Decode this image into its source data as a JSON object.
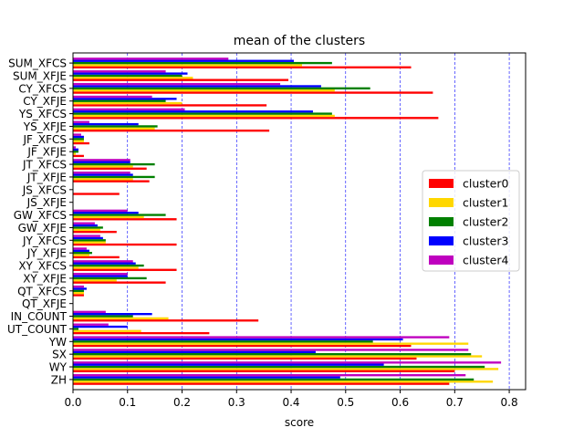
{
  "chart_data": {
    "type": "bar",
    "orientation": "horizontal",
    "title": "mean of the clusters",
    "xlabel": "score",
    "ylabel": "",
    "xlim": [
      0,
      0.83
    ],
    "xticks": [
      0.0,
      0.1,
      0.2,
      0.3,
      0.4,
      0.5,
      0.6,
      0.7,
      0.8
    ],
    "grid": "vertical dashed",
    "legend_position": "right",
    "categories": [
      "ZH",
      "WY",
      "SX",
      "YW",
      "OUT_COUNT",
      "IN_COUNT",
      "QT_XFJE",
      "QT_XFCS",
      "XY_XFJE",
      "XY_XFCS",
      "JY_XFJE",
      "JY_XFCS",
      "GW_XFJE",
      "GW_XFCS",
      "JS_XFJE",
      "JS_XFCS",
      "JT_XFJE",
      "JT_XFCS",
      "JF_XFJE",
      "JF_XFCS",
      "YS_XFJE",
      "YS_XFCS",
      "CY_XFJE",
      "CY_XFCS",
      "SUM_XFJE",
      "SUM_XFCS"
    ],
    "tick_labels": [
      "ZH",
      "WY",
      "SX",
      "YW",
      "UT_COUNT",
      "IN_COUNT",
      "QT_XFJE",
      "QT_XFCS",
      "XY_XFJE",
      "XY_XFCS",
      "JY_XFJE",
      "JY_XFCS",
      "GW_XFJE",
      "GW_XFCS",
      "JS_XFJE",
      "JS_XFCS",
      "JT_XFJE",
      "JT_XFCS",
      "JF_XFJE",
      "JF_XFCS",
      "YS_XFJE",
      "YS_XFCS",
      "CY_XFJE",
      "CY_XFCS",
      "SUM_XFJE",
      "SUM_XFCS"
    ],
    "series": [
      {
        "name": "cluster0",
        "color": "#ff0000",
        "values": [
          0.69,
          0.7,
          0.63,
          0.62,
          0.25,
          0.34,
          0.0,
          0.02,
          0.17,
          0.19,
          0.085,
          0.19,
          0.08,
          0.19,
          0.0,
          0.085,
          0.14,
          0.135,
          0.02,
          0.03,
          0.36,
          0.67,
          0.355,
          0.66,
          0.395,
          0.62
        ]
      },
      {
        "name": "cluster1",
        "color": "#ffd700",
        "values": [
          0.77,
          0.78,
          0.75,
          0.725,
          0.125,
          0.175,
          0.0,
          0.02,
          0.08,
          0.12,
          0.03,
          0.06,
          0.05,
          0.13,
          0.0,
          0.0,
          0.11,
          0.11,
          0.005,
          0.02,
          0.15,
          0.48,
          0.2,
          0.48,
          0.22,
          0.42
        ]
      },
      {
        "name": "cluster2",
        "color": "#008000",
        "values": [
          0.735,
          0.755,
          0.73,
          0.55,
          0.01,
          0.11,
          0.0,
          0.02,
          0.135,
          0.13,
          0.035,
          0.06,
          0.055,
          0.17,
          0.0,
          0.0,
          0.15,
          0.15,
          0.01,
          0.02,
          0.155,
          0.475,
          0.17,
          0.545,
          0.2,
          0.475
        ]
      },
      {
        "name": "cluster3",
        "color": "#0000ff",
        "values": [
          0.49,
          0.57,
          0.445,
          0.605,
          0.1,
          0.145,
          0.0,
          0.025,
          0.1,
          0.115,
          0.03,
          0.055,
          0.045,
          0.12,
          0.0,
          0.0,
          0.11,
          0.105,
          0.01,
          0.02,
          0.12,
          0.44,
          0.19,
          0.455,
          0.21,
          0.405
        ]
      },
      {
        "name": "cluster4",
        "color": "#bf00bf",
        "values": [
          0.72,
          0.785,
          0.725,
          0.69,
          0.065,
          0.06,
          0.0,
          0.02,
          0.1,
          0.11,
          0.025,
          0.05,
          0.04,
          0.1,
          0.0,
          0.0,
          0.105,
          0.105,
          0.005,
          0.015,
          0.03,
          0.205,
          0.145,
          0.38,
          0.17,
          0.285
        ]
      }
    ]
  }
}
